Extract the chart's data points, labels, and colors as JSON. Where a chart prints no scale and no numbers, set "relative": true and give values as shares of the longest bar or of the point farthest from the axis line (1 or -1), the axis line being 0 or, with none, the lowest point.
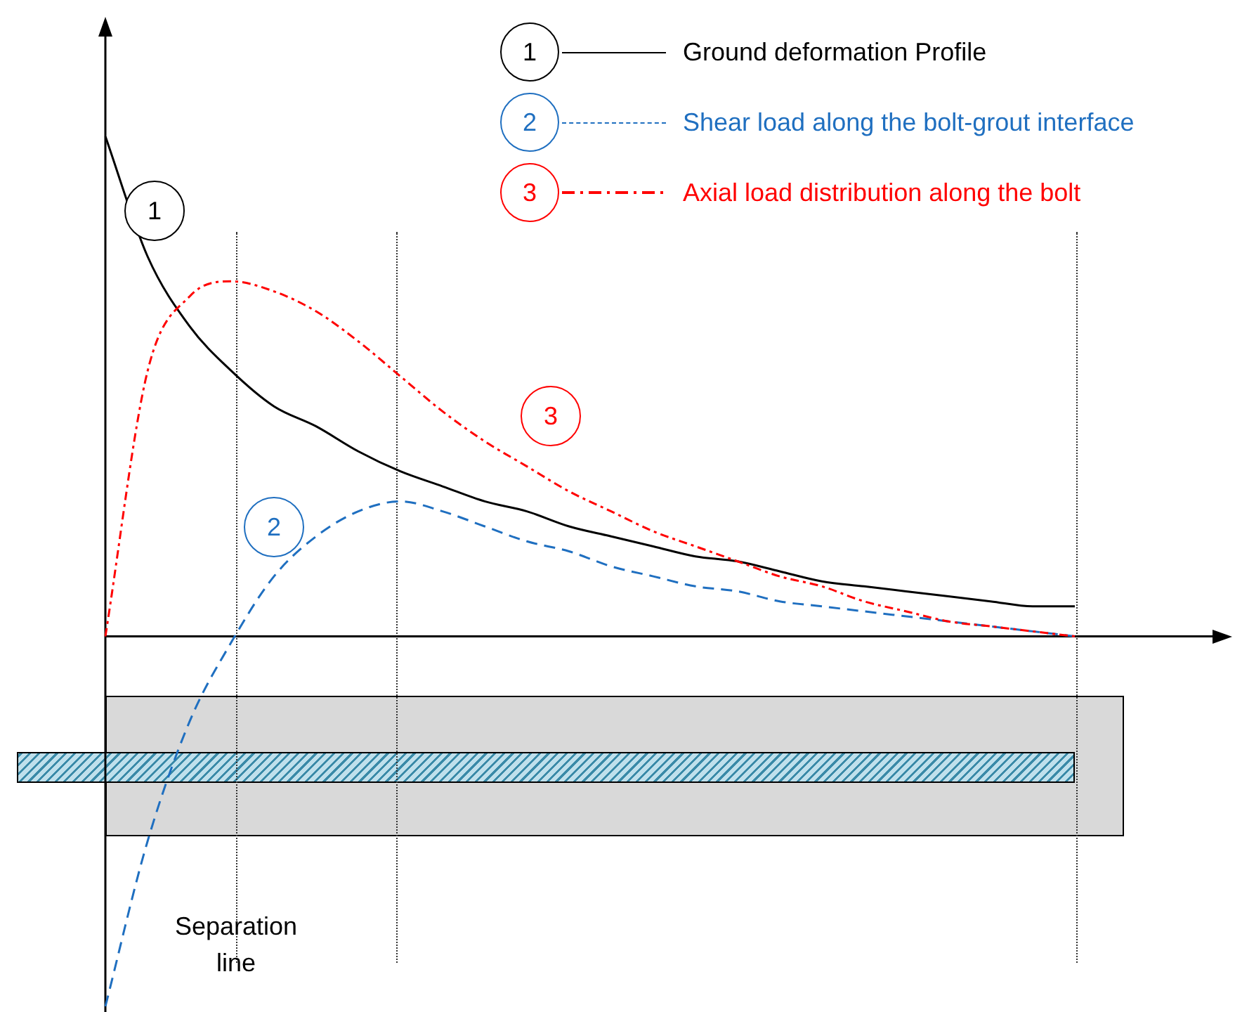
{
  "chart_data": {
    "type": "line",
    "relative": true,
    "legend": "top right",
    "marker": "none",
    "categories": [
      null,
      null,
      null,
      null,
      null,
      null,
      null,
      null,
      null,
      null,
      null,
      null,
      null,
      null,
      null,
      null,
      null,
      null,
      null,
      null,
      null,
      null,
      null,
      null
    ],
    "series": [
      {
        "name": "Ground deformation Profile",
        "color": "#000000",
        "line_style": "solid",
        "values": [
          1.0,
          0.76,
          0.62,
          0.53,
          0.46,
          0.42,
          0.37,
          0.33,
          0.3,
          0.27,
          0.25,
          0.22,
          0.2,
          0.18,
          0.16,
          0.15,
          0.13,
          0.11,
          0.1,
          0.09,
          0.08,
          0.07,
          0.06,
          0.06
        ]
      },
      {
        "name": "Shear load along the bolt-grout interface",
        "color": "#1f6fc0",
        "line_style": "dashed",
        "values": [
          -0.74,
          -0.41,
          -0.17,
          -0.01,
          0.12,
          0.2,
          0.25,
          0.27,
          0.25,
          0.22,
          0.19,
          0.17,
          0.14,
          0.12,
          0.1,
          0.09,
          0.07,
          0.06,
          0.05,
          0.04,
          0.03,
          0.02,
          0.01,
          0
        ]
      },
      {
        "name": "Axial load distribution along the bolt",
        "color": "#ff0000",
        "line_style": "dashdot",
        "values": [
          0,
          0.53,
          0.68,
          0.71,
          0.69,
          0.65,
          0.59,
          0.52,
          0.45,
          0.39,
          0.34,
          0.29,
          0.25,
          0.21,
          0.18,
          0.15,
          0.12,
          0.1,
          0.07,
          0.05,
          0.03,
          0.02,
          0.01,
          0
        ]
      }
    ],
    "annotations": [
      "1",
      "2",
      "3",
      "Separation line"
    ]
  }
}
